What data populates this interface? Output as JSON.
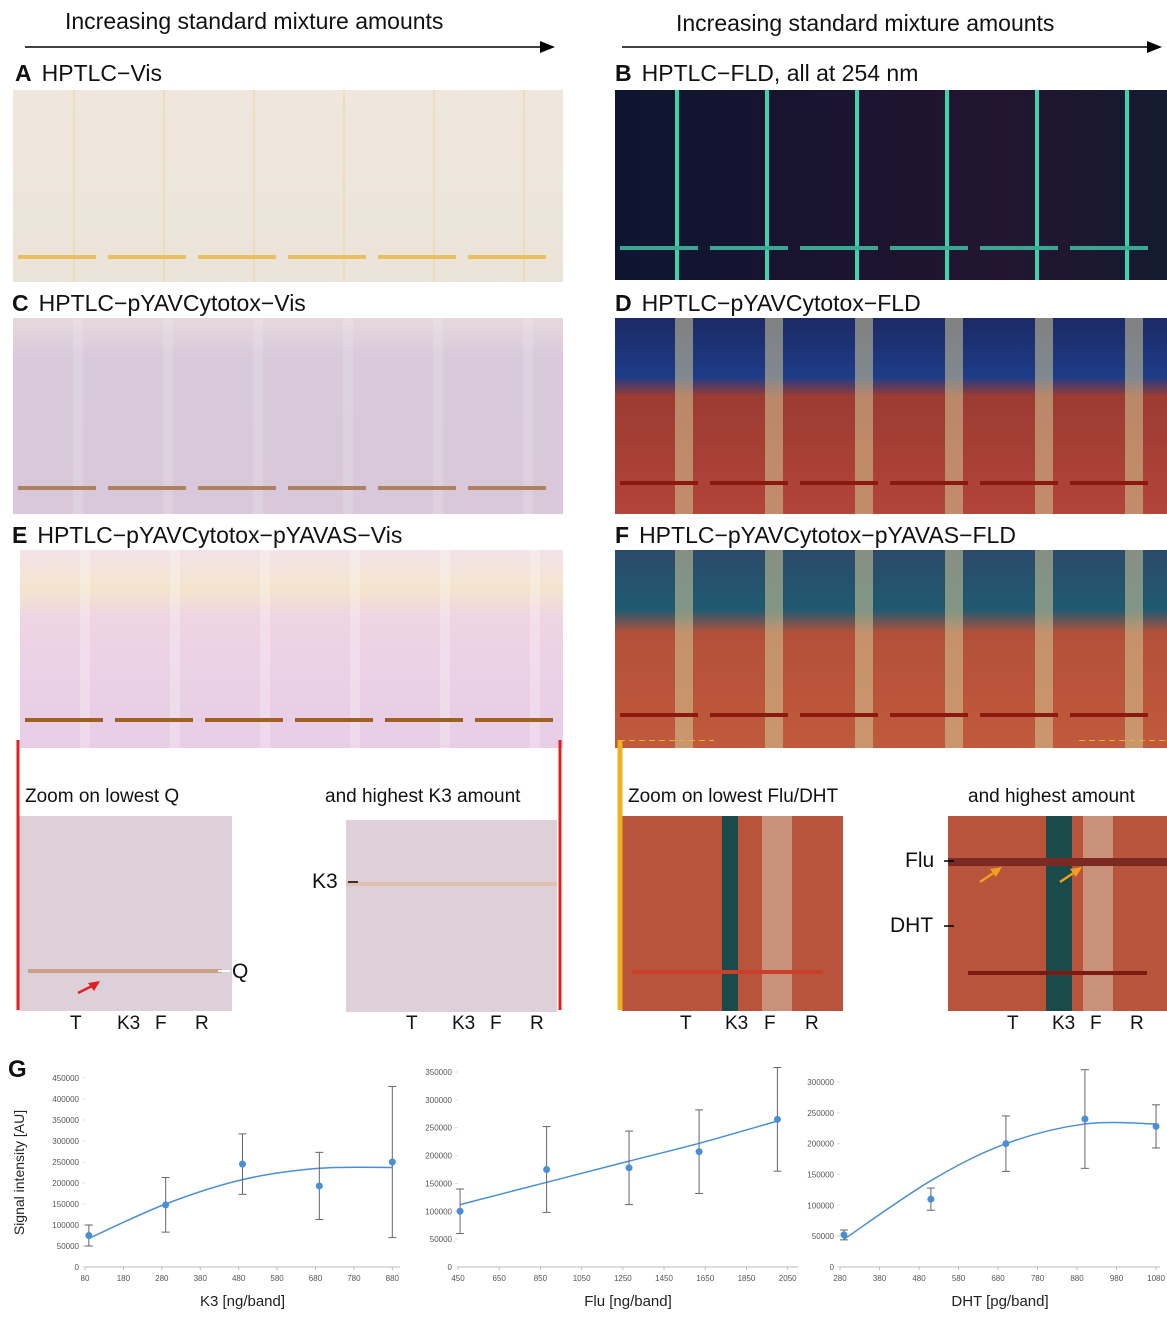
{
  "headers": [
    "Increasing standard mixture amounts",
    "Increasing standard mixture amounts"
  ],
  "panels": [
    {
      "letter": "A",
      "title": "HPTLC−Vis"
    },
    {
      "letter": "B",
      "title": "HPTLC−FLD, all at 254 nm"
    },
    {
      "letter": "C",
      "title": "HPTLC−pYAVCytotox−Vis"
    },
    {
      "letter": "D",
      "title": "HPTLC−pYAVCytotox−FLD"
    },
    {
      "letter": "E",
      "title": "HPTLC−pYAVCytotox−pYAVAS−Vis"
    },
    {
      "letter": "F",
      "title": "HPTLC−pYAVCytotox−pYAVAS−FLD"
    }
  ],
  "zooms": [
    {
      "caption": "Zoom on lowest Q",
      "markers": [
        "Q"
      ],
      "lanes": [
        "T",
        "K3",
        "F",
        "R"
      ]
    },
    {
      "caption": "and highest K3 amount",
      "markers": [
        "K3"
      ],
      "lanes": [
        "T",
        "K3",
        "F",
        "R"
      ]
    },
    {
      "caption": "Zoom on lowest Flu/DHT",
      "lanes": [
        "T",
        "K3",
        "F",
        "R"
      ]
    },
    {
      "caption": "and highest amount",
      "markers": [
        "Flu",
        "DHT"
      ],
      "lanes": [
        "T",
        "K3",
        "F",
        "R"
      ]
    }
  ],
  "panel_g_letter": "G",
  "chart_data": [
    {
      "type": "scatter",
      "x_label": "K3 [ng/band]",
      "y_label": "Signal intensity [AU]",
      "color": "#4a8fd4",
      "x": [
        90,
        290,
        490,
        690,
        880
      ],
      "values": [
        75000,
        148000,
        245000,
        193000,
        250000
      ],
      "errors": [
        25000,
        65000,
        72000,
        80000,
        180000
      ],
      "trend_values": [
        68000,
        150000,
        208000,
        235000,
        237000
      ],
      "xlim": [
        80,
        900
      ],
      "xticks": [
        80,
        180,
        280,
        380,
        480,
        580,
        680,
        780,
        880
      ],
      "ylim": [
        0,
        450000
      ],
      "yticks": [
        0,
        50000,
        100000,
        150000,
        200000,
        250000,
        300000,
        350000,
        400000,
        450000
      ]
    },
    {
      "type": "scatter",
      "x_label": "Flu [ng/band]",
      "color": "#4a8fd4",
      "x": [
        460,
        880,
        1280,
        1620,
        2000
      ],
      "values": [
        100000,
        175000,
        178000,
        207000,
        265000
      ],
      "errors": [
        40000,
        77000,
        66000,
        75000,
        93000
      ],
      "trend_values": [
        112000,
        152000,
        190000,
        222000,
        262000
      ],
      "xlim": [
        450,
        2100
      ],
      "xticks": [
        450,
        650,
        850,
        1050,
        1250,
        1450,
        1650,
        1850,
        2050
      ],
      "ylim": [
        0,
        350000
      ],
      "yticks": [
        0,
        50000,
        100000,
        150000,
        200000,
        250000,
        300000,
        350000
      ]
    },
    {
      "type": "scatter",
      "x_label": "DHT [pg/band]",
      "color": "#4a8fd4",
      "x": [
        290,
        510,
        700,
        900,
        1080
      ],
      "values": [
        52000,
        110000,
        200000,
        240000,
        228000
      ],
      "errors": [
        8000,
        18000,
        45000,
        80000,
        35000
      ],
      "trend_values": [
        45000,
        140000,
        200000,
        232000,
        232000
      ],
      "xlim": [
        280,
        1090
      ],
      "xticks": [
        280,
        380,
        480,
        580,
        680,
        780,
        880,
        980,
        1080
      ],
      "ylim": [
        0,
        300000
      ],
      "yticks": [
        0,
        50000,
        100000,
        150000,
        200000,
        250000,
        300000
      ]
    }
  ]
}
